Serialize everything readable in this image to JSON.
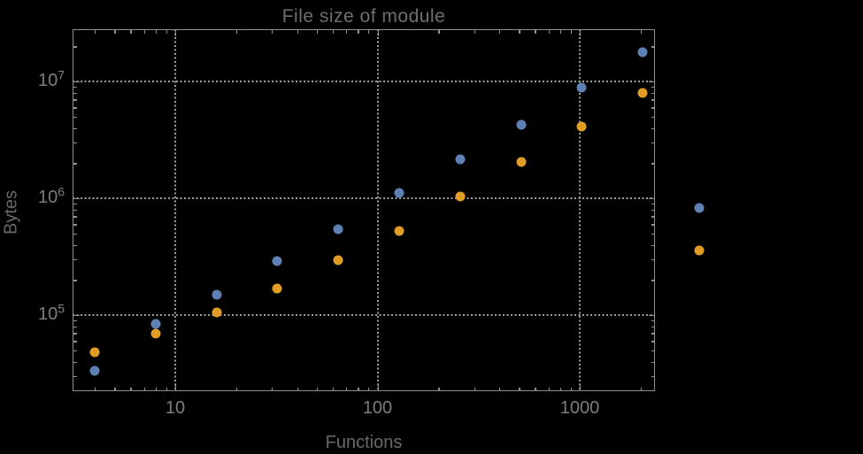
{
  "figure": {
    "background_color": "#000000"
  },
  "chart_data": {
    "type": "scatter",
    "title": "File size of module",
    "xlabel": "Functions",
    "ylabel": "Bytes",
    "x_scale": "log",
    "y_scale": "log",
    "xlim": [
      3.1,
      2380
    ],
    "ylim": [
      22000,
      28000000
    ],
    "grid": "dotted gray lines at decades",
    "x": [
      4,
      8,
      16,
      32,
      64,
      128,
      256,
      512,
      1024,
      2048
    ],
    "series": [
      {
        "name": "series-blue",
        "color": "#5e81b5",
        "marker": "circle",
        "values": [
          33300,
          84000,
          149000,
          290000,
          543000,
          1110000,
          2150000,
          4250000,
          8850000,
          17800000
        ]
      },
      {
        "name": "series-orange",
        "color": "#e19c24",
        "marker": "circle",
        "values": [
          48000,
          69300,
          105000,
          169000,
          295000,
          525000,
          1040000,
          2050000,
          4110000,
          7970000
        ]
      }
    ],
    "x_ticks": [
      {
        "label": "10",
        "value": 10
      },
      {
        "label": "100",
        "value": 100
      },
      {
        "label": "1000",
        "value": 1000
      }
    ],
    "y_ticks": [
      {
        "base": "10",
        "exponent": "7",
        "value": 10000000
      },
      {
        "base": "10",
        "exponent": "6",
        "value": 1000000
      },
      {
        "base": "10",
        "exponent": "5",
        "value": 100000
      }
    ],
    "legend": {
      "position": "right-of-plot",
      "entries": [
        {
          "series": "series-blue",
          "label": ""
        },
        {
          "series": "series-orange",
          "label": ""
        }
      ]
    }
  },
  "style": {
    "frame_color": "#909090",
    "grid_color": "#9e9e9e",
    "title_color": "#6f6f6f",
    "axis_label_color": "#696969",
    "tick_label_color": "#7d7d7d"
  }
}
